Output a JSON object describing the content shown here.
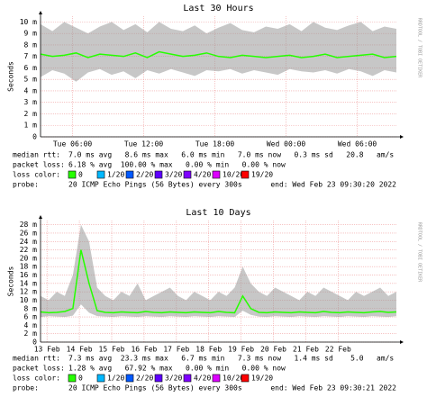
{
  "chart_data": [
    {
      "type": "line",
      "title": "Last 30 Hours",
      "ylabel": "Seconds",
      "watermark": "RRDTOOL / TOBI OETIKER",
      "xlim": [
        0,
        30
      ],
      "x": [
        0,
        1,
        2,
        3,
        4,
        5,
        6,
        7,
        8,
        9,
        10,
        11,
        12,
        13,
        14,
        15,
        16,
        17,
        18,
        19,
        20,
        21,
        22,
        23,
        24,
        25,
        26,
        27,
        28,
        29,
        30
      ],
      "xticks": [
        {
          "value": 2.7,
          "label": "Tue 06:00"
        },
        {
          "value": 8.7,
          "label": "Tue 12:00"
        },
        {
          "value": 14.7,
          "label": "Tue 18:00"
        },
        {
          "value": 20.7,
          "label": "Wed 00:00"
        },
        {
          "value": 26.7,
          "label": "Wed 06:00"
        }
      ],
      "ylim": [
        0,
        10.5
      ],
      "yticks": [
        0,
        {
          "value": 1,
          "label": "1 m"
        },
        {
          "value": 2,
          "label": "2 m"
        },
        {
          "value": 3,
          "label": "3 m"
        },
        {
          "value": 4,
          "label": "4 m"
        },
        {
          "value": 5,
          "label": "5 m"
        },
        {
          "value": 6,
          "label": "6 m"
        },
        {
          "value": 7,
          "label": "7 m"
        },
        {
          "value": 8,
          "label": "8 m"
        },
        {
          "value": 9,
          "label": "9 m"
        },
        {
          "value": 10,
          "label": "10 m"
        }
      ],
      "grid": true,
      "color": "#26ff00",
      "smoke_color": "#999999",
      "values": [
        7.2,
        7.0,
        7.1,
        7.3,
        6.9,
        7.2,
        7.1,
        7.0,
        7.3,
        6.9,
        7.4,
        7.2,
        7.0,
        7.1,
        7.3,
        7.0,
        6.9,
        7.1,
        7.0,
        6.9,
        7.0,
        7.1,
        6.9,
        7.0,
        7.2,
        6.9,
        7.0,
        7.1,
        7.2,
        6.9,
        7.0
      ],
      "smoke": {
        "low": [
          5.2,
          5.8,
          5.5,
          4.8,
          5.6,
          5.9,
          5.4,
          5.7,
          5.1,
          5.8,
          5.5,
          5.9,
          5.6,
          5.3,
          5.8,
          5.7,
          5.9,
          5.5,
          5.8,
          5.6,
          5.4,
          5.9,
          5.7,
          5.6,
          5.8,
          5.5,
          5.9,
          5.7,
          5.3,
          5.8,
          5.6
        ],
        "high": [
          9.8,
          9.2,
          10,
          9.5,
          9.0,
          9.6,
          10,
          9.3,
          9.8,
          9.1,
          10,
          9.4,
          9.2,
          9.7,
          9.0,
          9.5,
          9.9,
          9.3,
          9.1,
          9.6,
          9.4,
          9.8,
          9.2,
          10,
          9.5,
          9.3,
          9.7,
          10,
          9.2,
          9.6,
          9.4
        ]
      },
      "legend": {
        "median_rtt": {
          "label": "median rtt:",
          "text": "7.0 ms avg   8.6 ms max   6.0 ms min   7.0 ms now   0.3 ms sd   20.8   am/s"
        },
        "packet_loss": {
          "label": "packet loss:",
          "text": "6.18 % avg  100.00 % max   0.00 % min   0.00 % now"
        },
        "loss_color": {
          "label": "loss color:",
          "items": [
            {
              "label": "0",
              "color": "#26ff00"
            },
            {
              "label": "1/20",
              "color": "#00b8ff"
            },
            {
              "label": "2/20",
              "color": "#0059ff"
            },
            {
              "label": "3/20",
              "color": "#5e00ff"
            },
            {
              "label": "4/20",
              "color": "#7e00ff"
            },
            {
              "label": "10/20",
              "color": "#dd00ff"
            },
            {
              "label": "19/20",
              "color": "#ff0000"
            }
          ]
        },
        "probe": {
          "label": "probe:",
          "text": "20 ICMP Echo Pings (56 Bytes) every 300s",
          "end": "end: Wed Feb 23 09:30:20 2022"
        }
      }
    },
    {
      "type": "line",
      "title": "Last 10 Days",
      "ylabel": "Seconds",
      "watermark": "RRDTOOL / TOBI OETIKER",
      "xlim": [
        0,
        11
      ],
      "x": [
        0,
        0.25,
        0.5,
        0.75,
        1,
        1.25,
        1.5,
        1.75,
        2,
        2.25,
        2.5,
        2.75,
        3,
        3.25,
        3.5,
        3.75,
        4,
        4.25,
        4.5,
        4.75,
        5,
        5.25,
        5.5,
        5.75,
        6,
        6.25,
        6.5,
        6.75,
        7,
        7.25,
        7.5,
        7.75,
        8,
        8.25,
        8.5,
        8.75,
        9,
        9.25,
        9.5,
        9.75,
        10,
        10.25,
        10.5,
        10.75,
        11
      ],
      "xticks": [
        {
          "value": 0.2,
          "label": "13 Feb"
        },
        {
          "value": 1.2,
          "label": "14 Feb"
        },
        {
          "value": 2.2,
          "label": "15 Feb"
        },
        {
          "value": 3.2,
          "label": "16 Feb"
        },
        {
          "value": 4.2,
          "label": "17 Feb"
        },
        {
          "value": 5.2,
          "label": "18 Feb"
        },
        {
          "value": 6.2,
          "label": "19 Feb"
        },
        {
          "value": 7.2,
          "label": "20 Feb"
        },
        {
          "value": 8.2,
          "label": "21 Feb"
        },
        {
          "value": 9.2,
          "label": "22 Feb"
        }
      ],
      "ylim": [
        0,
        29
      ],
      "yticks": [
        0,
        {
          "value": 2,
          "label": "2 m"
        },
        {
          "value": 4,
          "label": "4 m"
        },
        {
          "value": 6,
          "label": "6 m"
        },
        {
          "value": 8,
          "label": "8 m"
        },
        {
          "value": 10,
          "label": "10 m"
        },
        {
          "value": 12,
          "label": "12 m"
        },
        {
          "value": 14,
          "label": "14 m"
        },
        {
          "value": 16,
          "label": "16 m"
        },
        {
          "value": 18,
          "label": "18 m"
        },
        {
          "value": 20,
          "label": "20 m"
        },
        {
          "value": 22,
          "label": "22 m"
        },
        {
          "value": 24,
          "label": "24 m"
        },
        {
          "value": 26,
          "label": "26 m"
        },
        {
          "value": 28,
          "label": "28 m"
        }
      ],
      "grid": true,
      "color": "#26ff00",
      "smoke_color": "#999999",
      "values": [
        7.2,
        7.0,
        7.1,
        7.3,
        8.0,
        22.0,
        14.0,
        7.5,
        7.1,
        7.0,
        7.2,
        7.1,
        7.0,
        7.3,
        7.1,
        7.0,
        7.2,
        7.1,
        7.0,
        7.2,
        7.1,
        7.0,
        7.3,
        7.1,
        7.0,
        11.0,
        8.0,
        7.1,
        7.0,
        7.2,
        7.1,
        7.0,
        7.2,
        7.1,
        7.0,
        7.3,
        7.1,
        7.0,
        7.2,
        7.1,
        7.0,
        7.2,
        7.3,
        7.1,
        7.2
      ],
      "smoke": {
        "low": [
          6.0,
          6.2,
          6.1,
          6.0,
          6.3,
          9.0,
          7.0,
          6.2,
          6.1,
          6.0,
          6.2,
          6.1,
          6.0,
          6.2,
          6.1,
          6.0,
          6.2,
          6.1,
          6.0,
          6.2,
          6.1,
          6.0,
          6.2,
          6.1,
          6.0,
          7.5,
          6.5,
          6.1,
          6.0,
          6.2,
          6.1,
          6.0,
          6.2,
          6.1,
          6.0,
          6.2,
          6.1,
          6.0,
          6.2,
          6.1,
          6.0,
          6.2,
          6.1,
          6.0,
          6.2
        ],
        "high": [
          11,
          10,
          12,
          11,
          16,
          28,
          24,
          13,
          11,
          10,
          12,
          11,
          14,
          10,
          11,
          12,
          13,
          11,
          10,
          12,
          11,
          10,
          12,
          11,
          13,
          18,
          14,
          12,
          11,
          13,
          12,
          11,
          10,
          12,
          11,
          13,
          12,
          11,
          10,
          12,
          11,
          12,
          13,
          11,
          12
        ]
      },
      "legend": {
        "median_rtt": {
          "label": "median rtt:",
          "text": "7.3 ms avg  23.3 ms max   6.7 ms min   7.3 ms now   1.4 ms sd    5.0   am/s"
        },
        "packet_loss": {
          "label": "packet loss:",
          "text": "1.28 % avg   67.92 % max   0.00 % min   0.00 % now"
        },
        "loss_color": {
          "label": "loss color:",
          "items": [
            {
              "label": "0",
              "color": "#26ff00"
            },
            {
              "label": "1/20",
              "color": "#00b8ff"
            },
            {
              "label": "2/20",
              "color": "#0059ff"
            },
            {
              "label": "3/20",
              "color": "#5e00ff"
            },
            {
              "label": "4/20",
              "color": "#7e00ff"
            },
            {
              "label": "10/20",
              "color": "#dd00ff"
            },
            {
              "label": "19/20",
              "color": "#ff0000"
            }
          ]
        },
        "probe": {
          "label": "probe:",
          "text": "20 ICMP Echo Pings (56 Bytes) every 300s",
          "end": "end: Wed Feb 23 09:30:21 2022"
        }
      }
    }
  ]
}
